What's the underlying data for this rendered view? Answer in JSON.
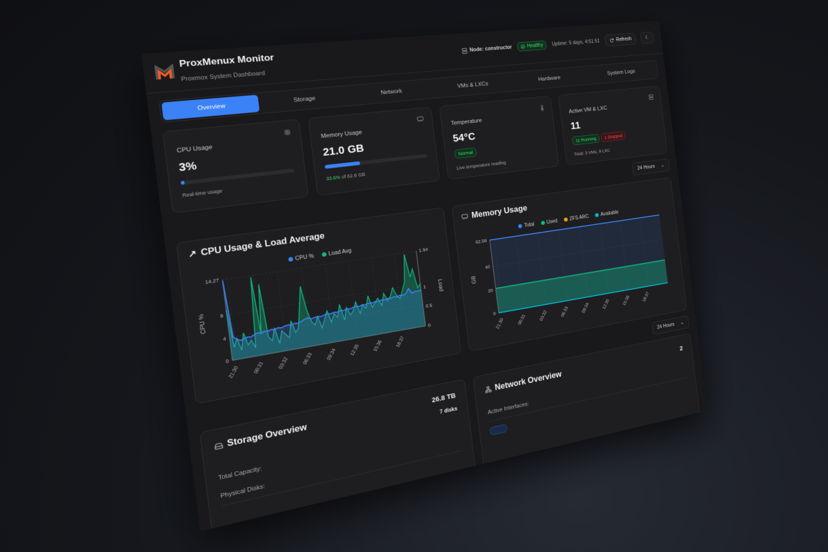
{
  "header": {
    "title": "ProxMenux Monitor",
    "subtitle": "Proxmox System Dashboard",
    "node": "Node: constructor",
    "health": "Healthy",
    "uptime": "Uptime: 5 days, 4:51:51",
    "refresh": "Refresh"
  },
  "tabs": [
    {
      "label": "Overview",
      "active": true
    },
    {
      "label": "Storage"
    },
    {
      "label": "Network"
    },
    {
      "label": "VMs & LXCs"
    },
    {
      "label": "Hardware"
    },
    {
      "label": "System Logs"
    }
  ],
  "stats": {
    "cpu": {
      "label": "CPU Usage",
      "value": "3%",
      "percent": 3,
      "sub": "Real-time usage",
      "icon": "cpu-icon"
    },
    "memory": {
      "label": "Memory Usage",
      "value": "21.0 GB",
      "percent": 33.6,
      "pct_text": "33.6%",
      "of_text": " of 62.6 GB",
      "icon": "memory-icon"
    },
    "temperature": {
      "label": "Temperature",
      "value": "54°C",
      "status": "Normal",
      "sub": "Live temperature reading",
      "icon": "thermometer-icon"
    },
    "vms": {
      "label": "Active VM & LXC",
      "value": "11",
      "running": "11 Running",
      "stopped": "1 Stopped",
      "sub": "Total: 3 VMs, 9 LXC",
      "icon": "server-icon"
    }
  },
  "range_select": "24 Hours",
  "range_select_2": "24 Hours",
  "colors": {
    "accent": "#3b82f6",
    "cpu": "#3b82f6",
    "load": "#10b981",
    "used": "#10b981",
    "zfs": "#f59e0b",
    "available": "#06b6d4",
    "total": "#3b82f6"
  },
  "chart_data": [
    {
      "type": "line",
      "title": "CPU Usage & Load Average",
      "ylabel": "CPU %",
      "y2label": "Load",
      "x_ticks": [
        "21:30",
        "00:31",
        "03:32",
        "06:33",
        "09:34",
        "12:35",
        "15:36",
        "18:37"
      ],
      "ylim": [
        0,
        14.27
      ],
      "y_ticks": [
        0,
        4,
        8,
        14.27
      ],
      "y2lim": [
        0,
        1.94
      ],
      "y2_ticks": [
        0,
        0.5,
        1,
        1.94
      ],
      "grid": true,
      "legend": "top",
      "series": [
        {
          "name": "CPU %",
          "axis": "left",
          "values": [
            14,
            4,
            3.5,
            3.2,
            3.4,
            3.6,
            3.5,
            3.8,
            4,
            3.9,
            4.1,
            4,
            4.2,
            4.1,
            4.3,
            4.2,
            4.4,
            4.5,
            4.4,
            4.6,
            4.5,
            4.7,
            5,
            5.2,
            4.9,
            5,
            5.1,
            5,
            5.2,
            5.3,
            5.2,
            5.4,
            5.3,
            5.5,
            5.4,
            5.6,
            5.5,
            5.7,
            5.8,
            5.7,
            5.9,
            5.8,
            6,
            5.9,
            6.1,
            6,
            6.2,
            6.1,
            6.3,
            6.2,
            6.4,
            6.3,
            6.5,
            6.4,
            6.6,
            7.5,
            6.5,
            6.8,
            6.7,
            6.9
          ]
        },
        {
          "name": "Load Avg",
          "axis": "right",
          "values": [
            1.2,
            0.3,
            0.5,
            0.2,
            0.6,
            0.3,
            0.4,
            0.2,
            1.9,
            0.5,
            1.7,
            0.4,
            0.3,
            0.6,
            0.2,
            0.5,
            0.4,
            0.3,
            0.7,
            0.4,
            0.5,
            1.0,
            1.5,
            0.9,
            0.6,
            0.5,
            0.7,
            0.4,
            0.6,
            0.8,
            0.5,
            0.7,
            0.6,
            0.9,
            0.5,
            0.8,
            0.6,
            0.7,
            0.9,
            0.6,
            0.8,
            0.7,
            1.0,
            0.7,
            0.8,
            0.9,
            0.7,
            1.0,
            0.8,
            0.9,
            1.1,
            0.9,
            0.8,
            1.0,
            1.2,
            1.9,
            1.3,
            1.5,
            1.0,
            1.1
          ]
        }
      ]
    },
    {
      "type": "area",
      "title": "Memory Usage",
      "ylabel": "GB",
      "x_ticks": [
        "21:30",
        "00:31",
        "03:32",
        "06:33",
        "09:34",
        "12:35",
        "15:36",
        "18:37"
      ],
      "ylim": [
        0,
        62.56
      ],
      "y_ticks": [
        0,
        20,
        40,
        62.56
      ],
      "grid": true,
      "legend": "top",
      "series": [
        {
          "name": "Total",
          "values": [
            62.56,
            62.56,
            62.56,
            62.56,
            62.56,
            62.56,
            62.56,
            62.56
          ]
        },
        {
          "name": "Used",
          "values": [
            21,
            21,
            21,
            21,
            21,
            21,
            21,
            21
          ]
        },
        {
          "name": "ZFS ARC",
          "values": [
            0,
            0,
            0,
            0,
            0,
            0,
            0,
            0
          ]
        },
        {
          "name": "Available",
          "values": [
            0,
            0,
            0,
            0,
            0,
            0,
            0,
            0
          ]
        }
      ]
    }
  ],
  "storage": {
    "title": "Storage Overview",
    "capacity": "26.8 TB",
    "disks": "7 disks",
    "capacity_label": "Total Capacity:",
    "disks_label": "Physical Disks:"
  },
  "network": {
    "title": "Network Overview",
    "count": "2",
    "interfaces_label": "Active Interfaces:"
  }
}
